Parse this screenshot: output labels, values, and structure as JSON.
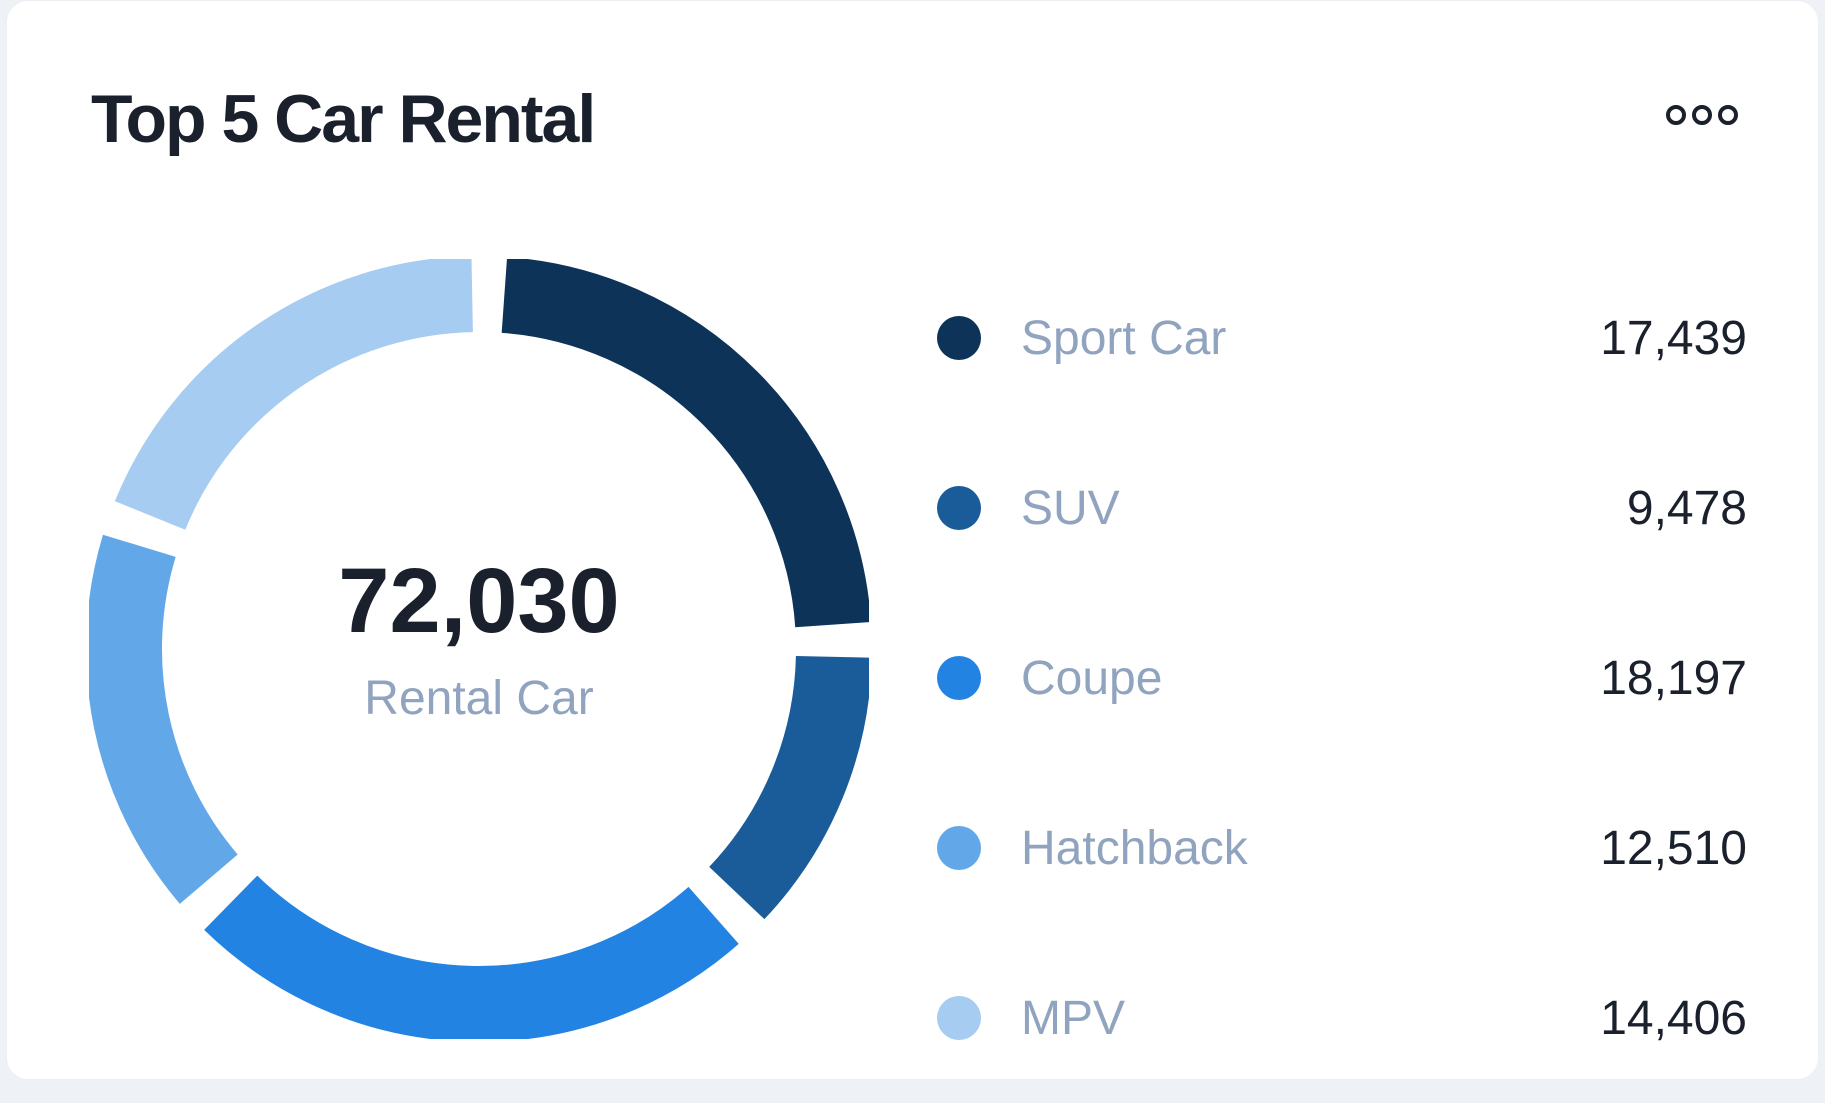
{
  "card": {
    "title": "Top 5 Car Rental",
    "more_icon": "more-horizontal-icon"
  },
  "chart_data": {
    "type": "pie",
    "title": "Top 5 Car Rental",
    "center_total": "72,030",
    "center_label": "Rental Car",
    "categories": [
      "Sport Car",
      "SUV",
      "Coupe",
      "Hatchback",
      "MPV"
    ],
    "values": [
      17439,
      9478,
      18197,
      12510,
      14406
    ],
    "value_labels": [
      "17,439",
      "9,478",
      "18,197",
      "12,510",
      "14,406"
    ],
    "colors": [
      "#0d3359",
      "#1a5b99",
      "#2383e2",
      "#62a8e8",
      "#a6ccf2"
    ],
    "legend_position": "right",
    "donut": true
  }
}
